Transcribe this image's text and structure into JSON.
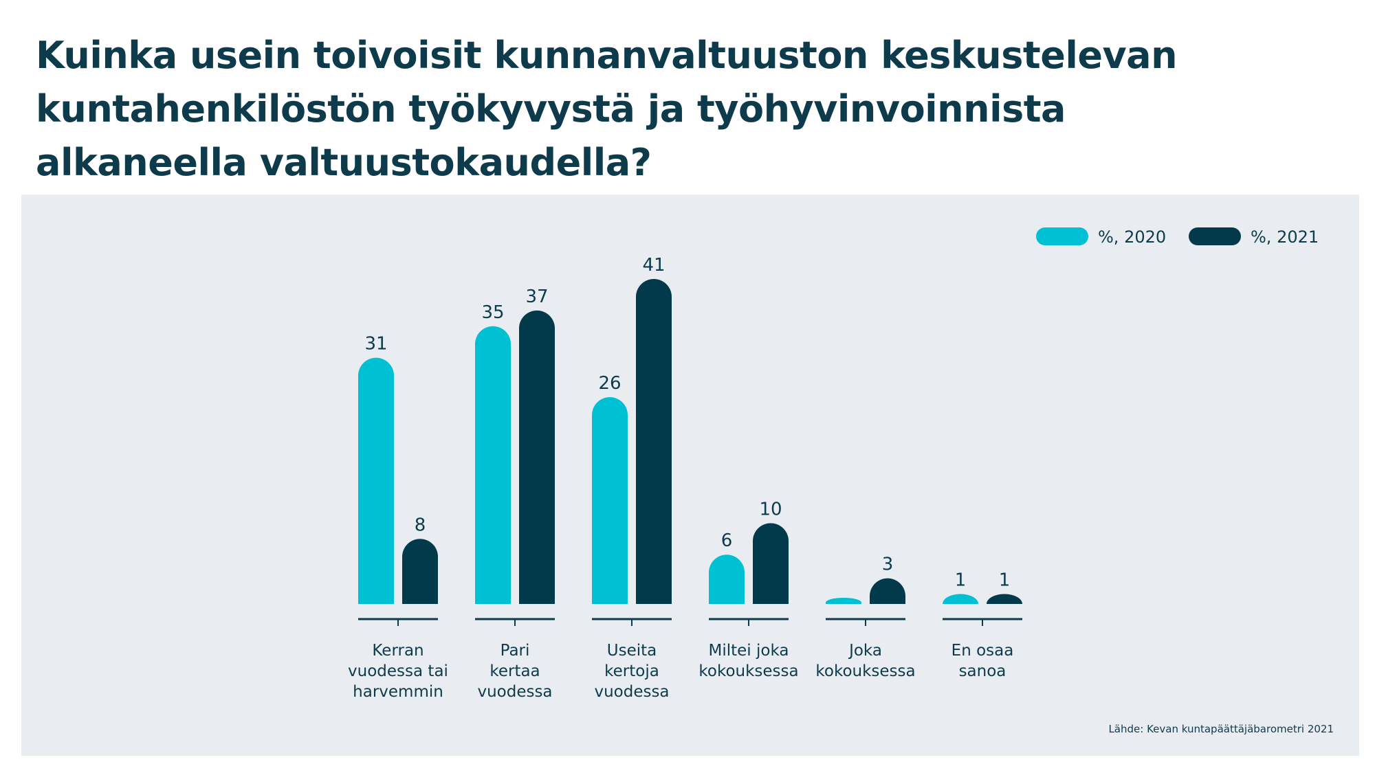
{
  "title_lines": [
    "Kuinka usein toivoisit kunnanvaltuuston keskustelevan",
    "kuntahenkilöstön työkyvystä ja työhyvinvoinnista",
    "alkaneella valtuustokaudella?"
  ],
  "source": "Lähde: Kevan kuntapäättäjäbarometri 2021",
  "colors": {
    "series_2020": "#00c0d4",
    "series_2021": "#033a4b",
    "text": "#0d3b4c",
    "panel": "#e9edf1"
  },
  "chart_data": {
    "type": "bar",
    "categories": [
      [
        "Kerran",
        "vuodessa tai",
        "harvemmin"
      ],
      [
        "Pari",
        "kertaa",
        "vuodessa"
      ],
      [
        "Useita",
        "kertoja",
        "vuodessa"
      ],
      [
        "Miltei joka",
        "kokouksessa"
      ],
      [
        "Joka",
        "kokouksessa"
      ],
      [
        "En osaa",
        "sanoa"
      ]
    ],
    "series": [
      {
        "name": "%, 2020",
        "color": "#00c0d4",
        "values": [
          31,
          35,
          26,
          6,
          null,
          1
        ]
      },
      {
        "name": "%, 2021",
        "color": "#033a4b",
        "values": [
          8,
          37,
          41,
          10,
          3,
          1
        ]
      }
    ],
    "ylim": [
      0,
      41
    ],
    "grid": false,
    "legend_position": "top-right"
  }
}
